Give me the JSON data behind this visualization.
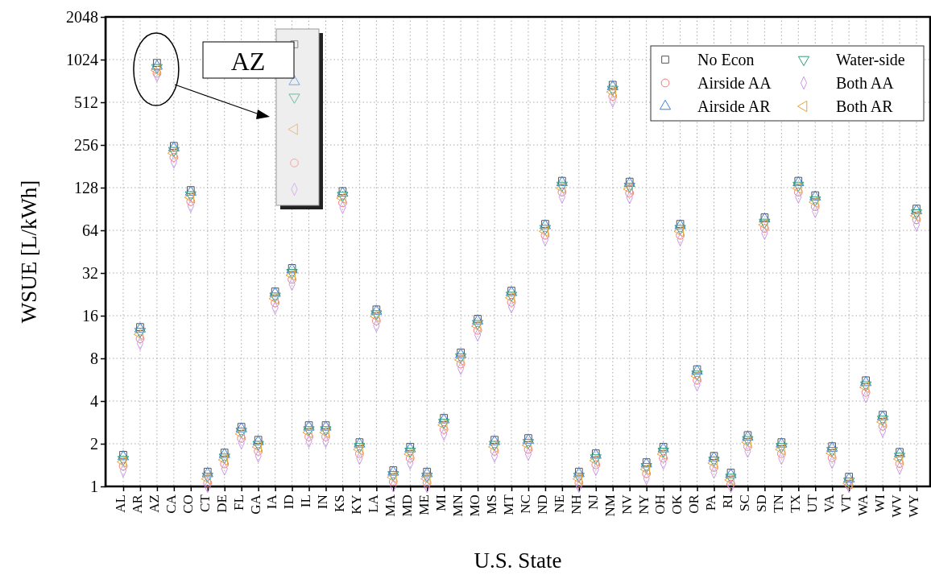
{
  "chart_data": {
    "type": "scatter",
    "xlabel": "U.S. State",
    "ylabel": "WSUE [L/kWh]",
    "annotations": [
      "AZ"
    ],
    "categories": [
      "AL",
      "AR",
      "AZ",
      "CA",
      "CO",
      "CT",
      "DE",
      "FL",
      "GA",
      "IA",
      "ID",
      "IL",
      "IN",
      "KS",
      "KY",
      "LA",
      "MA",
      "MD",
      "ME",
      "MI",
      "MN",
      "MO",
      "MS",
      "MT",
      "NC",
      "ND",
      "NE",
      "NH",
      "NJ",
      "NM",
      "NV",
      "NY",
      "OH",
      "OK",
      "OR",
      "PA",
      "RI",
      "SC",
      "SD",
      "TN",
      "TX",
      "UT",
      "VA",
      "VT",
      "WA",
      "WI",
      "WV",
      "WY"
    ],
    "log": true,
    "ylim": [
      1,
      2048
    ],
    "yticks": [
      1,
      2,
      4,
      8,
      16,
      32,
      64,
      128,
      256,
      512,
      1024,
      2048
    ],
    "grid": true,
    "legend": "top right",
    "series": [
      {
        "name": "No Econ",
        "color": "#555555",
        "marker": "square",
        "values": [
          1.67,
          13.3,
          970,
          252,
          123,
          1.27,
          1.73,
          2.63,
          2.13,
          23.7,
          34.7,
          2.7,
          2.7,
          121,
          2.05,
          17.7,
          1.3,
          1.9,
          1.27,
          3.04,
          8.8,
          15.2,
          2.13,
          24,
          2.19,
          71,
          143,
          1.27,
          1.71,
          680,
          141,
          1.48,
          1.9,
          71,
          6.7,
          1.64,
          1.25,
          2.3,
          79,
          2.05,
          143,
          113,
          1.92,
          1.17,
          5.6,
          3.2,
          1.75,
          91
        ]
      },
      {
        "name": "Airside AA",
        "color": "#f27c7c",
        "marker": "circle",
        "values": [
          1.39,
          11.0,
          820,
          209,
          102,
          1.06,
          1.44,
          2.18,
          1.77,
          19.7,
          28.8,
          2.24,
          2.24,
          100,
          1.7,
          14.7,
          1.08,
          1.58,
          1.06,
          2.52,
          7.3,
          12.6,
          1.77,
          19.9,
          1.82,
          59,
          119,
          1.06,
          1.42,
          564,
          117,
          1.23,
          1.58,
          59,
          5.6,
          1.36,
          1.04,
          1.91,
          66,
          1.7,
          119,
          94,
          1.59,
          1.02,
          4.6,
          2.66,
          1.45,
          76
        ]
      },
      {
        "name": "Airside AR",
        "color": "#3a7fe0",
        "marker": "triangle",
        "values": [
          1.62,
          12.9,
          920,
          244,
          119,
          1.23,
          1.68,
          2.55,
          2.07,
          23,
          33.7,
          2.62,
          2.62,
          117,
          1.99,
          17.2,
          1.26,
          1.84,
          1.23,
          2.95,
          8.5,
          14.7,
          2.07,
          23.3,
          2.12,
          69,
          139,
          1.23,
          1.66,
          660,
          137,
          1.44,
          1.84,
          69,
          6.5,
          1.59,
          1.21,
          2.23,
          77,
          1.99,
          139,
          110,
          1.86,
          1.13,
          5.4,
          3.1,
          1.7,
          88
        ]
      },
      {
        "name": "Water-side",
        "color": "#2e9e7a",
        "marker": "triangle-down",
        "values": [
          1.55,
          12.4,
          900,
          234,
          114,
          1.18,
          1.61,
          2.45,
          1.98,
          22,
          32.3,
          2.51,
          2.51,
          113,
          1.91,
          16.5,
          1.21,
          1.77,
          1.18,
          2.83,
          8.2,
          14.1,
          1.98,
          22.3,
          2.04,
          66,
          133,
          1.18,
          1.59,
          632,
          131,
          1.38,
          1.77,
          66,
          6.2,
          1.53,
          1.16,
          2.14,
          73,
          1.91,
          133,
          105,
          1.79,
          1.09,
          5.2,
          2.98,
          1.63,
          85
        ]
      },
      {
        "name": "Both AA",
        "color": "#c68de6",
        "marker": "diamond",
        "values": [
          1.29,
          10.2,
          790,
          194,
          95,
          1.0,
          1.33,
          2.03,
          1.64,
          18.2,
          26.7,
          2.08,
          2.08,
          93,
          1.58,
          13.6,
          1.01,
          1.46,
          1.0,
          2.34,
          6.8,
          11.7,
          1.64,
          18.5,
          1.69,
          55,
          110,
          1.0,
          1.32,
          524,
          109,
          1.14,
          1.46,
          55,
          5.2,
          1.26,
          1.0,
          1.77,
          61,
          1.58,
          110,
          87,
          1.48,
          1.0,
          4.3,
          2.46,
          1.35,
          70
        ]
      },
      {
        "name": "Both AR",
        "color": "#e8a33d",
        "marker": "triangle-left",
        "values": [
          1.49,
          11.8,
          860,
          224,
          109,
          1.13,
          1.54,
          2.34,
          1.9,
          21.1,
          30.9,
          2.4,
          2.4,
          108,
          1.82,
          15.8,
          1.16,
          1.69,
          1.13,
          2.71,
          7.8,
          13.5,
          1.9,
          21.4,
          1.95,
          63,
          127,
          1.13,
          1.52,
          605,
          125,
          1.32,
          1.69,
          63,
          6.0,
          1.46,
          1.11,
          2.05,
          70,
          1.82,
          127,
          101,
          1.71,
          1.05,
          5.0,
          2.85,
          1.56,
          81
        ]
      }
    ]
  }
}
